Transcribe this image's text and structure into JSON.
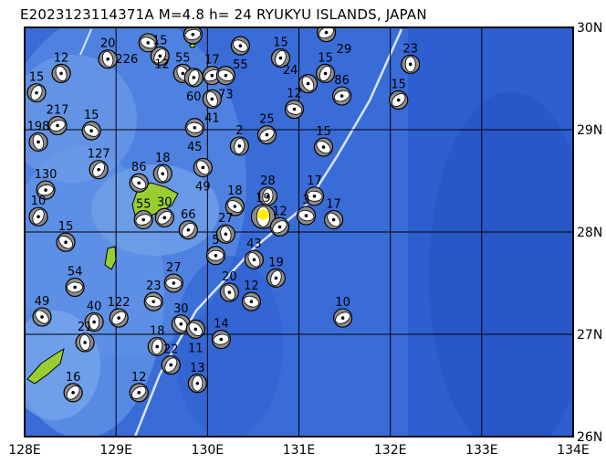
{
  "title": "E2023123114371A M=4.8 h= 24 RYUKYU ISLANDS, JAPAN",
  "map": {
    "lon_range": [
      128,
      134
    ],
    "lat_range": [
      26,
      30
    ],
    "lon_labels": [
      "128E",
      "129E",
      "130E",
      "131E",
      "132E",
      "133E",
      "134E"
    ],
    "lat_labels": [
      "30N",
      "29N",
      "28N",
      "27N",
      "26N"
    ],
    "colors": {
      "ocean_deep": "#2d5fd0",
      "ocean_shallow": "#6f9fe8",
      "land": "#9acd32",
      "trench": "#d8e4ff",
      "highlight": "#ffee00"
    }
  },
  "target_event": {
    "lon": 130.61,
    "lat": 28.15,
    "depth": "19"
  },
  "events": [
    {
      "lon": 132.22,
      "lat": 29.64,
      "depth": "23"
    },
    {
      "lon": 132.09,
      "lat": 29.29,
      "depth": "15"
    },
    {
      "lon": 131.17,
      "lat": 28.35,
      "depth": "17"
    },
    {
      "lon": 131.38,
      "lat": 28.12,
      "depth": "17"
    },
    {
      "lon": 130.66,
      "lat": 28.35,
      "depth": "28"
    },
    {
      "lon": 130.79,
      "lat": 28.05,
      "depth": "12"
    },
    {
      "lon": 131.08,
      "lat": 28.16,
      "depth": "3"
    },
    {
      "lon": 130.51,
      "lat": 27.73,
      "depth": "43"
    },
    {
      "lon": 130.75,
      "lat": 27.55,
      "depth": "19"
    },
    {
      "lon": 131.48,
      "lat": 27.16,
      "depth": "10"
    },
    {
      "lon": 130.48,
      "lat": 27.32,
      "depth": "12"
    },
    {
      "lon": 130.24,
      "lat": 27.41,
      "depth": "20"
    },
    {
      "lon": 128.13,
      "lat": 29.36,
      "depth": "15"
    },
    {
      "lon": 128.36,
      "lat": 29.04,
      "depth": "217"
    },
    {
      "lon": 128.73,
      "lat": 28.99,
      "depth": "15"
    },
    {
      "lon": 128.15,
      "lat": 28.88,
      "depth": "198"
    },
    {
      "lon": 128.81,
      "lat": 28.61,
      "depth": "127"
    },
    {
      "lon": 128.23,
      "lat": 28.41,
      "depth": "130"
    },
    {
      "lon": 129.25,
      "lat": 28.48,
      "depth": "86"
    },
    {
      "lon": 129.51,
      "lat": 28.57,
      "depth": "18"
    },
    {
      "lon": 129.79,
      "lat": 28.02,
      "depth": "66"
    },
    {
      "lon": 128.55,
      "lat": 27.46,
      "depth": "54"
    },
    {
      "lon": 128.19,
      "lat": 27.17,
      "depth": "49"
    },
    {
      "lon": 128.76,
      "lat": 27.12,
      "depth": "40"
    },
    {
      "lon": 129.03,
      "lat": 27.16,
      "depth": "122"
    },
    {
      "lon": 129.63,
      "lat": 27.5,
      "depth": "27"
    },
    {
      "lon": 129.71,
      "lat": 27.1,
      "depth": "30"
    },
    {
      "lon": 129.45,
      "lat": 26.88,
      "depth": "18"
    },
    {
      "lon": 129.25,
      "lat": 26.43,
      "depth": "12"
    },
    {
      "lon": 129.41,
      "lat": 27.32,
      "depth": "23"
    },
    {
      "lon": 129.73,
      "lat": 29.55,
      "depth": "55"
    },
    {
      "lon": 129.85,
      "lat": 29.51,
      "depth": "60"
    },
    {
      "lon": 130.05,
      "lat": 29.53,
      "depth": "17"
    },
    {
      "lon": 130.2,
      "lat": 29.53,
      "depth": "73"
    },
    {
      "lon": 130.05,
      "lat": 29.3,
      "depth": "41"
    },
    {
      "lon": 131.29,
      "lat": 29.55,
      "depth": "15"
    },
    {
      "lon": 131.47,
      "lat": 29.33,
      "depth": "86"
    },
    {
      "lon": 130.36,
      "lat": 29.82,
      "depth": "55"
    },
    {
      "lon": 128.91,
      "lat": 29.69,
      "depth": "20"
    },
    {
      "lon": 129.48,
      "lat": 29.72,
      "depth": "15"
    },
    {
      "lon": 129.84,
      "lat": 29.93,
      "depth": "12"
    },
    {
      "lon": 131.27,
      "lat": 28.83,
      "depth": "15"
    },
    {
      "lon": 128.66,
      "lat": 26.92,
      "depth": "21"
    },
    {
      "lon": 128.53,
      "lat": 26.43,
      "depth": "16"
    },
    {
      "lon": 130.09,
      "lat": 27.77,
      "depth": "5"
    },
    {
      "lon": 129.87,
      "lat": 27.05,
      "depth": "11"
    },
    {
      "lon": 129.89,
      "lat": 26.52,
      "depth": "13"
    },
    {
      "lon": 129.53,
      "lat": 28.14,
      "depth": "30"
    },
    {
      "lon": 129.86,
      "lat": 29.02,
      "depth": "45"
    },
    {
      "lon": 129.95,
      "lat": 28.63,
      "depth": "49"
    },
    {
      "lon": 130.35,
      "lat": 28.84,
      "depth": "2"
    },
    {
      "lon": 130.65,
      "lat": 28.95,
      "depth": "25"
    },
    {
      "lon": 130.95,
      "lat": 29.2,
      "depth": "12"
    },
    {
      "lon": 131.1,
      "lat": 29.45,
      "depth": "24"
    },
    {
      "lon": 130.8,
      "lat": 29.7,
      "depth": "15"
    },
    {
      "lon": 131.3,
      "lat": 29.95,
      "depth": "29"
    },
    {
      "lon": 129.35,
      "lat": 29.85,
      "depth": "226"
    },
    {
      "lon": 128.4,
      "lat": 29.55,
      "depth": "12"
    },
    {
      "lon": 128.15,
      "lat": 28.15,
      "depth": "10"
    },
    {
      "lon": 129.3,
      "lat": 28.12,
      "depth": "55"
    },
    {
      "lon": 130.3,
      "lat": 28.25,
      "depth": "18"
    },
    {
      "lon": 130.2,
      "lat": 27.98,
      "depth": "27"
    },
    {
      "lon": 129.6,
      "lat": 26.7,
      "depth": "22"
    },
    {
      "lon": 130.15,
      "lat": 26.95,
      "depth": "14"
    },
    {
      "lon": 128.45,
      "lat": 27.9,
      "depth": "15"
    }
  ]
}
